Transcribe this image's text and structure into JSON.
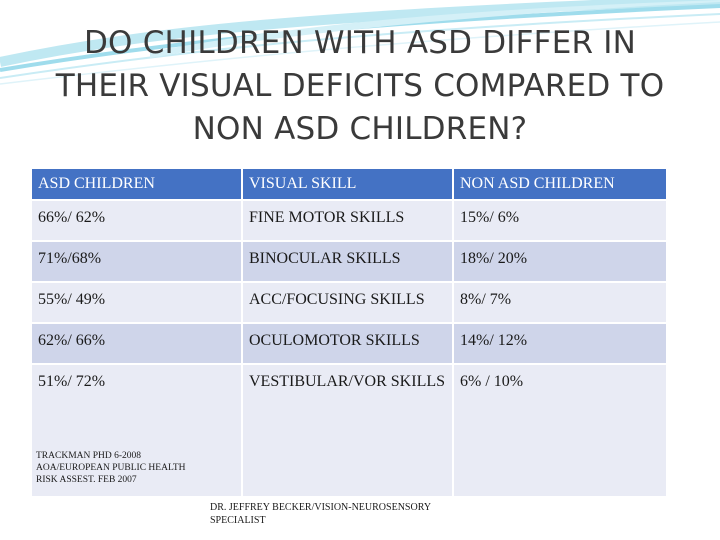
{
  "title_lines": [
    "DO CHILDREN WITH ASD DIFFER IN",
    "THEIR VISUAL DEFICITS COMPARED TO",
    "NON ASD CHILDREN?"
  ],
  "table": {
    "headers": [
      "ASD CHILDREN",
      "VISUAL SKILL",
      "NON ASD CHILDREN"
    ],
    "rows": [
      [
        "66%/ 62%",
        "FINE MOTOR SKILLS",
        "15%/ 6%"
      ],
      [
        "71%/68%",
        "BINOCULAR SKILLS",
        "18%/ 20%"
      ],
      [
        "55%/ 49%",
        "ACC/FOCUSING SKILLS",
        "8%/ 7%"
      ],
      [
        "62%/ 66%",
        "OCULOMOTOR SKILLS",
        "14%/ 12%"
      ],
      [
        "51%/  72%",
        "VESTIBULAR/VOR SKILLS",
        "6%  / 10%"
      ]
    ]
  },
  "citation": {
    "line1": "TRACKMAN PHD 6-2008",
    "line2": "AOA/EUROPEAN PUBLIC HEALTH",
    "line3": "RISK ASSEST. FEB 2007"
  },
  "credit": {
    "line1": "DR. JEFFREY BECKER/VISION-NEUROSENSORY",
    "line2": "SPECIALIST"
  },
  "colors": {
    "header_fill": "#4472c4",
    "row_fill_dark": "#cfd5ea",
    "row_fill_light": "#e9ebf5",
    "swoosh": "#8fd6e8"
  }
}
